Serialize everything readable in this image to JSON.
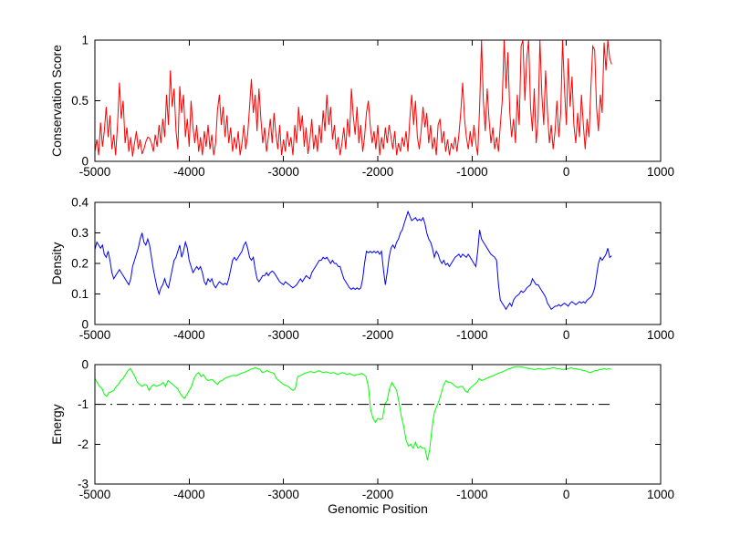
{
  "figure": {
    "xlabel": "Genomic Position",
    "background_color": "#ffffff",
    "axis_color": "#000000"
  },
  "chart_data": [
    {
      "type": "line",
      "name": "conservation-score-series",
      "ylabel": "Conservation Score",
      "color": "#ff0000",
      "grid": false,
      "legend": false,
      "xlim": [
        -5000,
        1000
      ],
      "ylim": [
        0,
        1
      ],
      "x_ticks": [
        -5000,
        -4000,
        -3000,
        -2000,
        -1000,
        0,
        1000
      ],
      "x_tick_labels": [
        "-5000",
        "-4000",
        "-3000",
        "-2000",
        "-1000",
        "0",
        "1000"
      ],
      "y_ticks": [
        0,
        0.5,
        1
      ],
      "y_tick_labels": [
        "0",
        "0.5",
        "1"
      ],
      "x0": -5000,
      "dx": 20,
      "values": [
        0.08,
        0.18,
        0.05,
        0.32,
        0.12,
        0.25,
        0.45,
        0.2,
        0.38,
        0.1,
        0.22,
        0.05,
        0.3,
        0.65,
        0.35,
        0.5,
        0.15,
        0.28,
        0.08,
        0.2,
        0.04,
        0.15,
        0.25,
        0.1,
        0.18,
        0.06,
        0.1,
        0.16,
        0.2,
        0.19,
        0.15,
        0.08,
        0.22,
        0.12,
        0.3,
        0.15,
        0.35,
        0.2,
        0.55,
        0.3,
        0.75,
        0.45,
        0.6,
        0.25,
        0.1,
        0.62,
        0.4,
        0.55,
        0.2,
        0.35,
        0.12,
        0.5,
        0.28,
        0.15,
        0.3,
        0.08,
        0.2,
        0.05,
        0.25,
        0.12,
        0.3,
        0.1,
        0.22,
        0.05,
        0.15,
        0.42,
        0.55,
        0.3,
        0.45,
        0.2,
        0.38,
        0.15,
        0.28,
        0.08,
        0.2,
        0.1,
        0.25,
        0.05,
        0.15,
        0.3,
        0.1,
        0.22,
        0.45,
        0.68,
        0.4,
        0.55,
        0.25,
        0.6,
        0.35,
        0.15,
        0.28,
        0.08,
        0.2,
        0.35,
        0.15,
        0.4,
        0.22,
        0.1,
        0.3,
        0.05,
        0.18,
        0.08,
        0.25,
        0.12,
        0.2,
        0.05,
        0.3,
        0.15,
        0.45,
        0.25,
        0.38,
        0.12,
        0.28,
        0.06,
        0.18,
        0.35,
        0.1,
        0.22,
        0.08,
        0.3,
        0.15,
        0.42,
        0.25,
        0.55,
        0.3,
        0.45,
        0.18,
        0.3,
        0.1,
        0.2,
        0.05,
        0.15,
        0.28,
        0.1,
        0.35,
        0.2,
        0.6,
        0.38,
        0.22,
        0.45,
        0.15,
        0.3,
        0.08,
        0.2,
        0.4,
        0.5,
        0.3,
        0.15,
        0.25,
        0.1,
        0.3,
        0.05,
        0.2,
        0.1,
        0.28,
        0.15,
        0.3,
        0.2,
        0.1,
        0.25,
        0.05,
        0.15,
        0.08,
        0.2,
        0.12,
        0.25,
        0.08,
        0.35,
        0.55,
        0.3,
        0.5,
        0.2,
        0.1,
        0.25,
        0.45,
        0.28,
        0.4,
        0.15,
        0.3,
        0.1,
        0.2,
        0.05,
        0.3,
        0.35,
        0.15,
        0.25,
        0.08,
        0.18,
        0.05,
        0.15,
        0.1,
        0.2,
        0.08,
        0.22,
        0.4,
        0.65,
        0.35,
        0.2,
        0.1,
        0.25,
        0.12,
        0.3,
        0.15,
        0.05,
        0.45,
        1.0,
        0.5,
        0.25,
        0.6,
        0.35,
        0.15,
        0.28,
        0.1,
        0.2,
        0.08,
        0.3,
        0.5,
        1.0,
        0.6,
        0.9,
        0.4,
        0.2,
        0.35,
        0.15,
        0.55,
        0.3,
        0.95,
        1.0,
        0.5,
        0.85,
        1.0,
        0.45,
        0.25,
        0.6,
        0.15,
        0.35,
        1.0,
        0.55,
        0.3,
        0.75,
        0.4,
        0.15,
        0.3,
        0.1,
        0.25,
        0.5,
        0.2,
        0.4,
        1.0,
        0.6,
        0.3,
        0.85,
        0.45,
        0.7,
        0.3,
        0.15,
        0.4,
        0.2,
        0.55,
        0.3,
        0.1,
        0.35,
        0.2,
        0.6,
        0.95,
        0.92,
        0.45,
        0.25,
        0.55,
        0.4,
        0.98,
        0.75,
        1.0,
        0.85,
        0.8
      ]
    },
    {
      "type": "line",
      "name": "density-series",
      "ylabel": "Density",
      "color": "#0000ff",
      "grid": false,
      "legend": false,
      "xlim": [
        -5000,
        1000
      ],
      "ylim": [
        0,
        0.4
      ],
      "x_ticks": [
        -5000,
        -4000,
        -3000,
        -2000,
        -1000,
        0,
        1000
      ],
      "x_tick_labels": [
        "-5000",
        "-4000",
        "-3000",
        "-2000",
        "-1000",
        "0",
        "1000"
      ],
      "y_ticks": [
        0,
        0.1,
        0.2,
        0.3,
        0.4
      ],
      "y_tick_labels": [
        "0",
        "0.1",
        "0.2",
        "0.3",
        "0.4"
      ],
      "x0": -5000,
      "dx": 20,
      "values": [
        0.245,
        0.27,
        0.26,
        0.25,
        0.26,
        0.23,
        0.22,
        0.24,
        0.21,
        0.17,
        0.15,
        0.16,
        0.17,
        0.18,
        0.17,
        0.16,
        0.15,
        0.14,
        0.13,
        0.15,
        0.19,
        0.21,
        0.23,
        0.25,
        0.28,
        0.3,
        0.27,
        0.26,
        0.28,
        0.26,
        0.22,
        0.18,
        0.15,
        0.12,
        0.1,
        0.12,
        0.13,
        0.15,
        0.13,
        0.12,
        0.15,
        0.18,
        0.21,
        0.22,
        0.24,
        0.26,
        0.22,
        0.24,
        0.27,
        0.25,
        0.21,
        0.19,
        0.17,
        0.18,
        0.19,
        0.18,
        0.19,
        0.17,
        0.14,
        0.13,
        0.15,
        0.14,
        0.15,
        0.13,
        0.12,
        0.13,
        0.14,
        0.135,
        0.13,
        0.135,
        0.13,
        0.15,
        0.18,
        0.21,
        0.22,
        0.21,
        0.22,
        0.23,
        0.24,
        0.26,
        0.27,
        0.25,
        0.22,
        0.21,
        0.22,
        0.18,
        0.15,
        0.14,
        0.15,
        0.16,
        0.16,
        0.17,
        0.16,
        0.17,
        0.175,
        0.17,
        0.16,
        0.15,
        0.14,
        0.135,
        0.13,
        0.14,
        0.135,
        0.13,
        0.125,
        0.12,
        0.125,
        0.13,
        0.14,
        0.15,
        0.14,
        0.15,
        0.16,
        0.155,
        0.15,
        0.17,
        0.18,
        0.19,
        0.2,
        0.21,
        0.21,
        0.22,
        0.215,
        0.22,
        0.21,
        0.2,
        0.21,
        0.2,
        0.2,
        0.19,
        0.19,
        0.17,
        0.15,
        0.14,
        0.13,
        0.12,
        0.115,
        0.12,
        0.115,
        0.12,
        0.115,
        0.12,
        0.15,
        0.2,
        0.24,
        0.235,
        0.24,
        0.235,
        0.24,
        0.235,
        0.24,
        0.23,
        0.24,
        0.18,
        0.13,
        0.17,
        0.22,
        0.25,
        0.26,
        0.25,
        0.27,
        0.28,
        0.3,
        0.31,
        0.33,
        0.35,
        0.37,
        0.355,
        0.34,
        0.345,
        0.35,
        0.34,
        0.345,
        0.34,
        0.35,
        0.33,
        0.3,
        0.28,
        0.27,
        0.25,
        0.22,
        0.24,
        0.23,
        0.21,
        0.2,
        0.21,
        0.195,
        0.2,
        0.19,
        0.2,
        0.21,
        0.22,
        0.225,
        0.23,
        0.22,
        0.23,
        0.225,
        0.22,
        0.23,
        0.22,
        0.21,
        0.2,
        0.19,
        0.24,
        0.31,
        0.28,
        0.27,
        0.26,
        0.25,
        0.24,
        0.23,
        0.225,
        0.22,
        0.21,
        0.13,
        0.08,
        0.07,
        0.06,
        0.05,
        0.06,
        0.07,
        0.06,
        0.08,
        0.09,
        0.095,
        0.1,
        0.11,
        0.105,
        0.11,
        0.12,
        0.125,
        0.13,
        0.15,
        0.14,
        0.13,
        0.13,
        0.12,
        0.11,
        0.1,
        0.09,
        0.07,
        0.06,
        0.05,
        0.055,
        0.06,
        0.06,
        0.065,
        0.06,
        0.065,
        0.07,
        0.065,
        0.06,
        0.07,
        0.075,
        0.07,
        0.065,
        0.07,
        0.075,
        0.07,
        0.075,
        0.07,
        0.08,
        0.085,
        0.09,
        0.1,
        0.12,
        0.16,
        0.2,
        0.22,
        0.21,
        0.22,
        0.23,
        0.25,
        0.22,
        0.225
      ]
    },
    {
      "type": "line",
      "name": "energy-series",
      "ylabel": "Energy",
      "color": "#00ff00",
      "grid": false,
      "legend": false,
      "xlim": [
        -5000,
        1000
      ],
      "ylim": [
        -3,
        0
      ],
      "x_ticks": [
        -5000,
        -4000,
        -3000,
        -2000,
        -1000,
        0,
        1000
      ],
      "x_tick_labels": [
        "-5000",
        "-4000",
        "-3000",
        "-2000",
        "-1000",
        "0",
        "1000"
      ],
      "y_ticks": [
        -3,
        -2,
        -1,
        0
      ],
      "y_tick_labels": [
        "-3",
        "-2",
        "-1",
        "0"
      ],
      "x0": -5000,
      "dx": 25,
      "values": [
        -0.35,
        -0.45,
        -0.55,
        -0.6,
        -0.75,
        -0.8,
        -0.7,
        -0.68,
        -0.65,
        -0.55,
        -0.5,
        -0.4,
        -0.35,
        -0.25,
        -0.15,
        -0.1,
        -0.2,
        -0.3,
        -0.45,
        -0.5,
        -0.55,
        -0.5,
        -0.52,
        -0.65,
        -0.55,
        -0.5,
        -0.55,
        -0.52,
        -0.5,
        -0.45,
        -0.55,
        -0.4,
        -0.45,
        -0.5,
        -0.55,
        -0.6,
        -0.7,
        -0.8,
        -0.85,
        -0.75,
        -0.65,
        -0.55,
        -0.35,
        -0.25,
        -0.2,
        -0.3,
        -0.25,
        -0.35,
        -0.4,
        -0.38,
        -0.38,
        -0.45,
        -0.5,
        -0.42,
        -0.4,
        -0.35,
        -0.32,
        -0.3,
        -0.28,
        -0.27,
        -0.28,
        -0.25,
        -0.22,
        -0.2,
        -0.18,
        -0.15,
        -0.12,
        -0.1,
        -0.08,
        -0.1,
        -0.12,
        -0.2,
        -0.18,
        -0.15,
        -0.18,
        -0.2,
        -0.22,
        -0.35,
        -0.4,
        -0.45,
        -0.5,
        -0.52,
        -0.55,
        -0.6,
        -0.65,
        -0.6,
        -0.3,
        -0.28,
        -0.25,
        -0.22,
        -0.2,
        -0.18,
        -0.18,
        -0.2,
        -0.18,
        -0.15,
        -0.18,
        -0.2,
        -0.18,
        -0.2,
        -0.22,
        -0.2,
        -0.22,
        -0.25,
        -0.22,
        -0.2,
        -0.22,
        -0.25,
        -0.22,
        -0.25,
        -0.28,
        -0.25,
        -0.25,
        -0.22,
        -0.25,
        -0.3,
        -0.55,
        -1.15,
        -1.35,
        -1.45,
        -1.35,
        -1.38,
        -1.35,
        -1.0,
        -0.9,
        -0.6,
        -0.45,
        -0.55,
        -0.65,
        -0.95,
        -1.3,
        -1.55,
        -1.9,
        -2.05,
        -2.0,
        -2.1,
        -1.95,
        -2.1,
        -2.05,
        -2.1,
        -2.1,
        -2.4,
        -2.15,
        -1.6,
        -1.2,
        -1.05,
        -0.9,
        -0.7,
        -0.5,
        -0.4,
        -0.45,
        -0.45,
        -0.5,
        -0.55,
        -0.58,
        -0.55,
        -0.55,
        -0.65,
        -0.7,
        -0.6,
        -0.55,
        -0.5,
        -0.45,
        -0.35,
        -0.4,
        -0.38,
        -0.35,
        -0.32,
        -0.3,
        -0.28,
        -0.25,
        -0.22,
        -0.2,
        -0.18,
        -0.15,
        -0.12,
        -0.1,
        -0.08,
        -0.06,
        -0.05,
        -0.05,
        -0.06,
        -0.07,
        -0.08,
        -0.1,
        -0.1,
        -0.12,
        -0.12,
        -0.1,
        -0.1,
        -0.12,
        -0.12,
        -0.1,
        -0.1,
        -0.08,
        -0.08,
        -0.1,
        -0.1,
        -0.12,
        -0.12,
        -0.1,
        -0.1,
        -0.08,
        -0.1,
        -0.1,
        -0.12,
        -0.12,
        -0.15,
        -0.15,
        -0.18,
        -0.2,
        -0.18,
        -0.15,
        -0.15,
        -0.12,
        -0.12,
        -0.1,
        -0.12,
        -0.1,
        -0.12
      ],
      "refline": {
        "y": -1,
        "style": "dash-dot",
        "color": "#000000",
        "x_start": -5000,
        "x_end": 500
      }
    }
  ]
}
